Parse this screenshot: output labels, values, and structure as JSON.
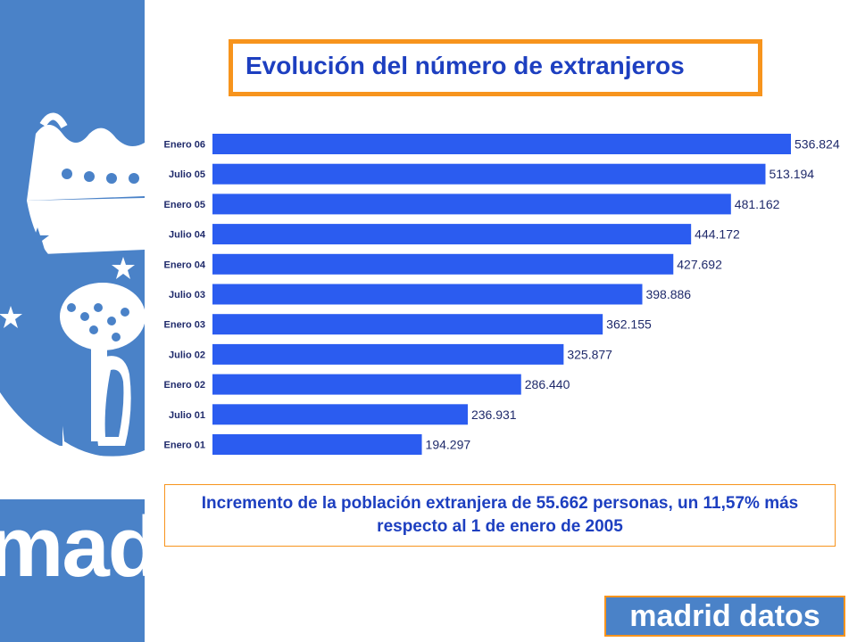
{
  "colors": {
    "sidebar": "#4a82c8",
    "accent_orange": "#f7941d",
    "title_blue": "#1d3fc0",
    "bar": "#2b5cf0"
  },
  "sidebar": {
    "watermark_text": "madrid",
    "emblem_icon": "madrid-coat-of-arms-icon"
  },
  "title": "Evolución del número de extranjeros",
  "note": "Incremento de la población extranjera de 55.662 personas, un 11,57% más respecto al 1 de enero de 2005",
  "logo": "madrid datos",
  "chart_data": {
    "type": "bar",
    "orientation": "horizontal",
    "categories": [
      "Enero 06",
      "Julio 05",
      "Enero 05",
      "Julio 04",
      "Enero 04",
      "Julio 03",
      "Enero 03",
      "Julio 02",
      "Enero 02",
      "Julio 01",
      "Enero 01"
    ],
    "values": [
      536824,
      513194,
      481162,
      444172,
      427692,
      398886,
      362155,
      325877,
      286440,
      236931,
      194297
    ],
    "value_labels": [
      "536.824",
      "513.194",
      "481.162",
      "444.172",
      "427.692",
      "398.886",
      "362.155",
      "325.877",
      "286.440",
      "236.931",
      "194.297"
    ],
    "xlim": [
      0,
      536824
    ],
    "grid": false,
    "legend": "none"
  }
}
